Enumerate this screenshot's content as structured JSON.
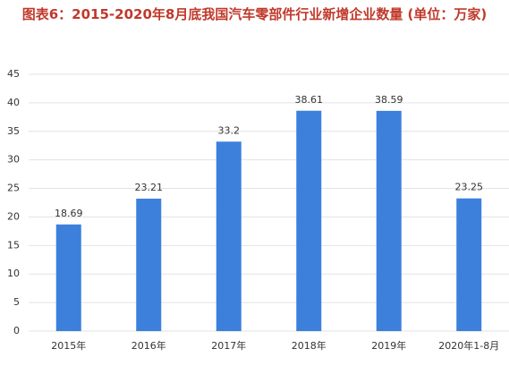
{
  "chart_data": {
    "type": "bar",
    "title": "图表6：2015-2020年8月底我国汽车零部件行业新增企业数量 (单位：万家)",
    "categories": [
      "2015年",
      "2016年",
      "2017年",
      "2018年",
      "2019年",
      "2020年1-8月"
    ],
    "values": [
      18.69,
      23.21,
      33.2,
      38.61,
      38.59,
      23.25
    ],
    "color": "#3d80dc",
    "ylim": [
      0,
      45
    ],
    "yticks": [
      0,
      5,
      10,
      15,
      20,
      25,
      30,
      35,
      40,
      45
    ],
    "grid": true
  }
}
